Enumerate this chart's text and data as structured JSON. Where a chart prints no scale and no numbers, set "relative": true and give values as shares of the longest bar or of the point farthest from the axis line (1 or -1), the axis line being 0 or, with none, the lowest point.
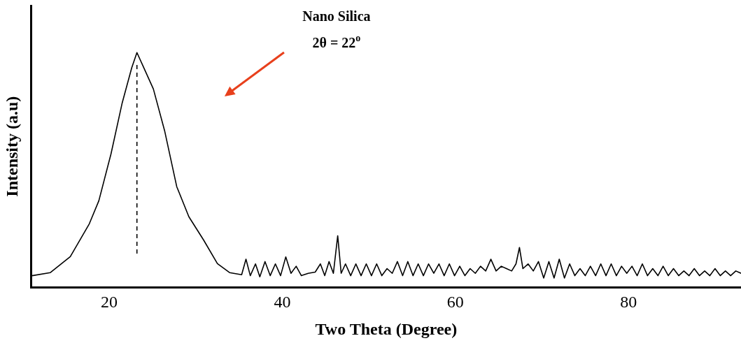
{
  "chart_data": {
    "type": "line",
    "relative": true,
    "xlabel": "Two Theta (Degree)",
    "ylabel": "Intensity (a.u)",
    "annotations": [
      "Nano Silica",
      "2θ = 22$^{o}$"
    ],
    "xlim": [
      11,
      93
    ],
    "xticks": [
      20,
      40,
      60,
      80
    ],
    "grid": false,
    "legend": false,
    "marker": "none",
    "line_style": "solid",
    "ref_lines": [
      {
        "axis": "x",
        "value": 23.2,
        "label": null,
        "line_style": "dashed",
        "color": "#000000"
      }
    ],
    "series": [
      {
        "color": "#000000",
        "x": [
          11.1,
          13.2,
          15.5,
          17.7,
          18.8,
          20.2,
          21.5,
          22.6,
          23.2,
          24.0,
          25.1,
          26.4,
          27.8,
          29.2,
          30.9,
          32.5,
          33.9,
          35.3,
          35.8,
          36.3,
          36.9,
          37.4,
          38,
          38.6,
          39.2,
          39.8,
          40.4,
          41,
          41.6,
          42.2,
          43,
          43.8,
          44.4,
          44.9,
          45.4,
          45.9,
          46.4,
          46.8,
          47.3,
          47.9,
          48.5,
          49.1,
          49.7,
          50.3,
          50.9,
          51.5,
          52.1,
          52.7,
          53.3,
          53.9,
          54.5,
          55.1,
          55.7,
          56.3,
          56.9,
          57.5,
          58.1,
          58.7,
          59.3,
          59.9,
          60.5,
          61.1,
          61.7,
          62.3,
          62.9,
          63.5,
          64.1,
          64.7,
          65.3,
          65.9,
          66.5,
          67,
          67.4,
          67.8,
          68.4,
          69,
          69.6,
          70.2,
          70.8,
          71.4,
          72,
          72.6,
          73.2,
          73.8,
          74.4,
          75,
          75.6,
          76.2,
          76.8,
          77.4,
          78,
          78.6,
          79.2,
          79.8,
          80.4,
          81,
          81.6,
          82.2,
          82.8,
          83.4,
          84,
          84.6,
          85.2,
          85.8,
          86.4,
          87,
          87.6,
          88.2,
          88.8,
          89.4,
          90,
          90.6,
          91.2,
          91.8,
          92.4,
          93
        ],
        "values": [
          0.05,
          0.063,
          0.131,
          0.271,
          0.369,
          0.568,
          0.786,
          0.935,
          1.0,
          0.935,
          0.845,
          0.667,
          0.429,
          0.301,
          0.202,
          0.101,
          0.063,
          0.054,
          0.12,
          0.05,
          0.1,
          0.045,
          0.11,
          0.05,
          0.1,
          0.05,
          0.13,
          0.06,
          0.09,
          0.05,
          0.06,
          0.065,
          0.1,
          0.05,
          0.11,
          0.06,
          0.22,
          0.06,
          0.1,
          0.05,
          0.1,
          0.05,
          0.1,
          0.05,
          0.1,
          0.05,
          0.08,
          0.06,
          0.11,
          0.05,
          0.11,
          0.05,
          0.1,
          0.05,
          0.1,
          0.06,
          0.1,
          0.05,
          0.1,
          0.05,
          0.09,
          0.05,
          0.08,
          0.06,
          0.09,
          0.07,
          0.12,
          0.07,
          0.09,
          0.08,
          0.07,
          0.1,
          0.17,
          0.08,
          0.1,
          0.07,
          0.11,
          0.04,
          0.11,
          0.04,
          0.12,
          0.04,
          0.1,
          0.05,
          0.08,
          0.05,
          0.09,
          0.05,
          0.1,
          0.05,
          0.1,
          0.05,
          0.09,
          0.06,
          0.09,
          0.05,
          0.1,
          0.05,
          0.08,
          0.05,
          0.09,
          0.05,
          0.08,
          0.05,
          0.07,
          0.05,
          0.08,
          0.05,
          0.07,
          0.05,
          0.08,
          0.05,
          0.07,
          0.05,
          0.07,
          0.06
        ]
      }
    ]
  }
}
